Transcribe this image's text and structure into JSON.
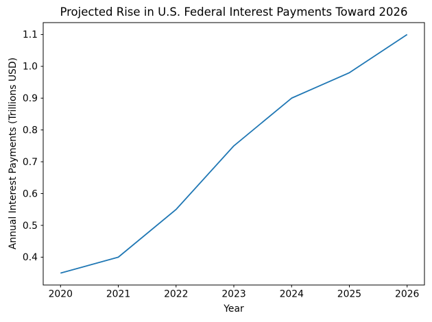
{
  "figure": {
    "background": "#ffffff"
  },
  "chart_data": {
    "type": "line",
    "title": "Projected Rise in U.S. Federal Interest Payments Toward 2026",
    "xlabel": "Year",
    "ylabel": "Annual Interest Payments (Trillions USD)",
    "x": [
      2020,
      2021,
      2022,
      2023,
      2024,
      2025,
      2026
    ],
    "series": [
      {
        "name": "annual-interest-payments",
        "values": [
          0.35,
          0.4,
          0.55,
          0.75,
          0.9,
          0.98,
          1.1
        ]
      }
    ],
    "xticks": [
      2020,
      2021,
      2022,
      2023,
      2024,
      2025,
      2026
    ],
    "xtick_labels": [
      "2020",
      "2021",
      "2022",
      "2023",
      "2024",
      "2025",
      "2026"
    ],
    "yticks": [
      0.4,
      0.5,
      0.6,
      0.7,
      0.8,
      0.9,
      1.0,
      1.1
    ],
    "ytick_labels": [
      "0.4",
      "0.5",
      "0.6",
      "0.7",
      "0.8",
      "0.9",
      "1.0",
      "1.1"
    ],
    "xlim": [
      2019.7,
      2026.3
    ],
    "ylim": [
      0.3125,
      1.1375
    ],
    "grid": false,
    "legend": "none",
    "line_color": "#1f77b4",
    "line_width": 1.8,
    "spine_color": "#000000",
    "tick_color": "#000000"
  }
}
